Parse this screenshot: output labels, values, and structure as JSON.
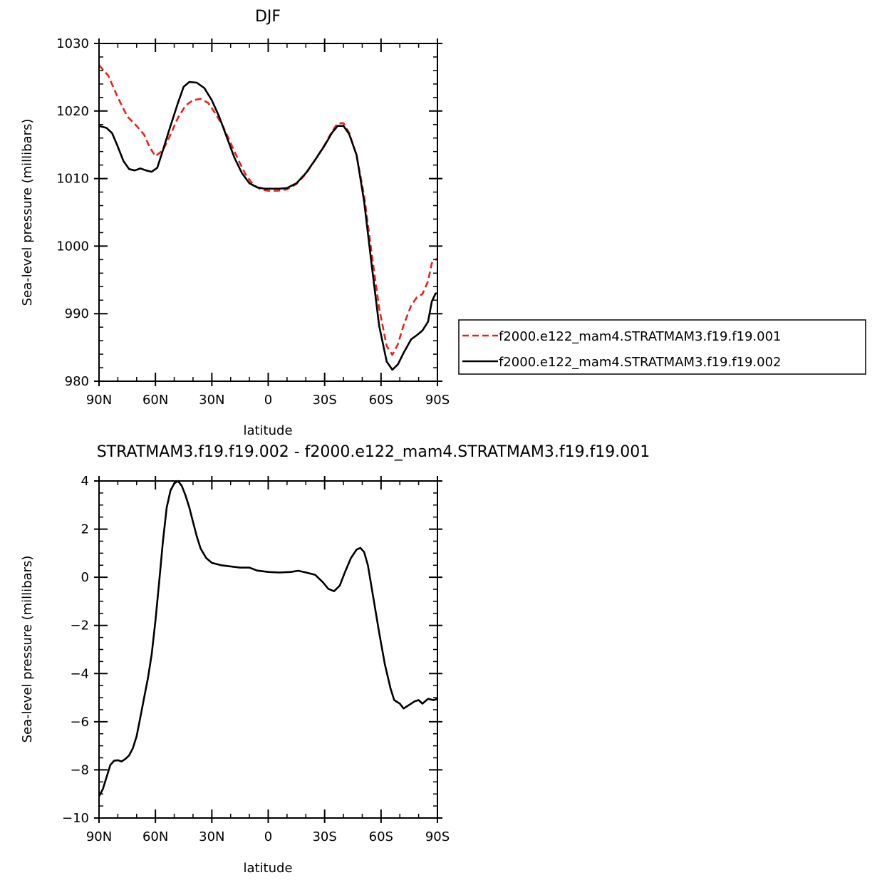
{
  "chart_data": [
    {
      "type": "line",
      "title": "DJF",
      "xlabel": "latitude",
      "ylabel": "Sea-level pressure (millibars)",
      "xlim": [
        90,
        -90
      ],
      "ylim": [
        980,
        1030
      ],
      "x_ticks": [
        {
          "value": 90,
          "label": "90N"
        },
        {
          "value": 60,
          "label": "60N"
        },
        {
          "value": 30,
          "label": "30N"
        },
        {
          "value": 0,
          "label": "0"
        },
        {
          "value": -30,
          "label": "30S"
        },
        {
          "value": -60,
          "label": "60S"
        },
        {
          "value": -90,
          "label": "90S"
        }
      ],
      "y_ticks": [
        {
          "value": 980,
          "label": "980"
        },
        {
          "value": 990,
          "label": "990"
        },
        {
          "value": 1000,
          "label": "1000"
        },
        {
          "value": 1010,
          "label": "1010"
        },
        {
          "value": 1020,
          "label": "1020"
        },
        {
          "value": 1030,
          "label": "1030"
        }
      ],
      "grid": false,
      "legend_position": "right",
      "series": [
        {
          "name": "f2000.e122_mam4.STRATMAM3.f19.f19.001",
          "color": "#e8231c",
          "dash": "dashed",
          "points": [
            [
              90,
              1026.8
            ],
            [
              85,
              1025.2
            ],
            [
              80,
              1022.0
            ],
            [
              75,
              1019.2
            ],
            [
              70,
              1017.8
            ],
            [
              66,
              1016.5
            ],
            [
              63,
              1014.6
            ],
            [
              60,
              1013.3
            ],
            [
              56,
              1014.2
            ],
            [
              52,
              1016.5
            ],
            [
              48,
              1019.0
            ],
            [
              44,
              1020.8
            ],
            [
              40,
              1021.6
            ],
            [
              36,
              1021.8
            ],
            [
              32,
              1021.2
            ],
            [
              28,
              1019.6
            ],
            [
              24,
              1017.7
            ],
            [
              20,
              1015.3
            ],
            [
              16,
              1012.8
            ],
            [
              12,
              1010.6
            ],
            [
              8,
              1009.1
            ],
            [
              4,
              1008.4
            ],
            [
              0,
              1008.2
            ],
            [
              -5,
              1008.2
            ],
            [
              -10,
              1008.4
            ],
            [
              -15,
              1009.2
            ],
            [
              -20,
              1010.7
            ],
            [
              -25,
              1012.8
            ],
            [
              -30,
              1015.0
            ],
            [
              -34,
              1017.0
            ],
            [
              -37,
              1018.2
            ],
            [
              -40,
              1018.2
            ],
            [
              -43,
              1016.8
            ],
            [
              -47,
              1013.4
            ],
            [
              -51,
              1007.5
            ],
            [
              -55,
              999.0
            ],
            [
              -59,
              990.8
            ],
            [
              -63,
              985.2
            ],
            [
              -66,
              983.9
            ],
            [
              -69,
              985.5
            ],
            [
              -72,
              988.3
            ],
            [
              -76,
              991.2
            ],
            [
              -79,
              992.4
            ],
            [
              -82,
              992.9
            ],
            [
              -85,
              994.8
            ],
            [
              -87,
              997.5
            ],
            [
              -90,
              998.2
            ]
          ]
        },
        {
          "name": "f2000.e122_mam4.STRATMAM3.f19.f19.002",
          "color": "#000000",
          "dash": "solid",
          "points": [
            [
              90,
              1017.8
            ],
            [
              86,
              1017.5
            ],
            [
              83,
              1016.7
            ],
            [
              80,
              1014.7
            ],
            [
              77,
              1012.6
            ],
            [
              74,
              1011.4
            ],
            [
              71,
              1011.2
            ],
            [
              68,
              1011.5
            ],
            [
              65,
              1011.2
            ],
            [
              62,
              1011.0
            ],
            [
              59,
              1011.6
            ],
            [
              56,
              1014.2
            ],
            [
              52,
              1017.8
            ],
            [
              48,
              1021.2
            ],
            [
              45,
              1023.6
            ],
            [
              42,
              1024.3
            ],
            [
              38,
              1024.2
            ],
            [
              34,
              1023.4
            ],
            [
              30,
              1021.6
            ],
            [
              26,
              1019.1
            ],
            [
              22,
              1016.1
            ],
            [
              18,
              1013.1
            ],
            [
              14,
              1010.8
            ],
            [
              10,
              1009.3
            ],
            [
              6,
              1008.7
            ],
            [
              2,
              1008.5
            ],
            [
              -2,
              1008.5
            ],
            [
              -6,
              1008.5
            ],
            [
              -10,
              1008.6
            ],
            [
              -15,
              1009.3
            ],
            [
              -20,
              1010.8
            ],
            [
              -25,
              1012.8
            ],
            [
              -30,
              1014.9
            ],
            [
              -34,
              1016.8
            ],
            [
              -37,
              1017.8
            ],
            [
              -40,
              1017.8
            ],
            [
              -43,
              1016.6
            ],
            [
              -47,
              1013.5
            ],
            [
              -51,
              1006.6
            ],
            [
              -55,
              997.3
            ],
            [
              -59,
              988.2
            ],
            [
              -63,
              982.9
            ],
            [
              -66,
              981.7
            ],
            [
              -69,
              982.5
            ],
            [
              -72,
              984.2
            ],
            [
              -76,
              986.2
            ],
            [
              -79,
              986.8
            ],
            [
              -82,
              987.5
            ],
            [
              -85,
              988.8
            ],
            [
              -87,
              991.8
            ],
            [
              -89,
              993.0
            ],
            [
              -90,
              993.0
            ]
          ]
        }
      ]
    },
    {
      "type": "line",
      "title": "STRATMAM3.f19.f19.002 - f2000.e122_mam4.STRATMAM3.f19.f19.001",
      "xlabel": "latitude",
      "ylabel": "Sea-level pressure (millibars)",
      "xlim": [
        90,
        -90
      ],
      "ylim": [
        -10,
        4
      ],
      "x_ticks": [
        {
          "value": 90,
          "label": "90N"
        },
        {
          "value": 60,
          "label": "60N"
        },
        {
          "value": 30,
          "label": "30N"
        },
        {
          "value": 0,
          "label": "0"
        },
        {
          "value": -30,
          "label": "30S"
        },
        {
          "value": -60,
          "label": "60S"
        },
        {
          "value": -90,
          "label": "90S"
        }
      ],
      "y_ticks": [
        {
          "value": -10,
          "label": "-10"
        },
        {
          "value": -8,
          "label": "-8"
        },
        {
          "value": -6,
          "label": "-6"
        },
        {
          "value": -4,
          "label": "-4"
        },
        {
          "value": -2,
          "label": "-2"
        },
        {
          "value": 0,
          "label": "0"
        },
        {
          "value": 2,
          "label": "2"
        },
        {
          "value": 4,
          "label": "4"
        }
      ],
      "grid": false,
      "series": [
        {
          "color": "#000000",
          "dash": "solid",
          "points": [
            [
              90,
              -9.1
            ],
            [
              88,
              -8.8
            ],
            [
              86,
              -8.3
            ],
            [
              84,
              -7.8
            ],
            [
              82,
              -7.62
            ],
            [
              80,
              -7.6
            ],
            [
              78,
              -7.65
            ],
            [
              76,
              -7.55
            ],
            [
              74,
              -7.4
            ],
            [
              72,
              -7.1
            ],
            [
              70,
              -6.6
            ],
            [
              68,
              -5.8
            ],
            [
              66,
              -5.0
            ],
            [
              64,
              -4.2
            ],
            [
              62,
              -3.2
            ],
            [
              60,
              -1.8
            ],
            [
              58,
              -0.2
            ],
            [
              56,
              1.5
            ],
            [
              54,
              2.9
            ],
            [
              52,
              3.6
            ],
            [
              50,
              3.9
            ],
            [
              48,
              4.0
            ],
            [
              46,
              3.8
            ],
            [
              44,
              3.4
            ],
            [
              42,
              2.9
            ],
            [
              40,
              2.3
            ],
            [
              38,
              1.7
            ],
            [
              36,
              1.2
            ],
            [
              33,
              0.8
            ],
            [
              30,
              0.6
            ],
            [
              25,
              0.5
            ],
            [
              20,
              0.45
            ],
            [
              15,
              0.4
            ],
            [
              10,
              0.4
            ],
            [
              6,
              0.28
            ],
            [
              0,
              0.22
            ],
            [
              -6,
              0.2
            ],
            [
              -12,
              0.22
            ],
            [
              -16,
              0.27
            ],
            [
              -20,
              0.2
            ],
            [
              -25,
              0.1
            ],
            [
              -29,
              -0.2
            ],
            [
              -32,
              -0.48
            ],
            [
              -35,
              -0.58
            ],
            [
              -38,
              -0.35
            ],
            [
              -41,
              0.25
            ],
            [
              -44,
              0.8
            ],
            [
              -47,
              1.15
            ],
            [
              -49,
              1.22
            ],
            [
              -51,
              1.05
            ],
            [
              -53,
              0.5
            ],
            [
              -56,
              -0.9
            ],
            [
              -59,
              -2.3
            ],
            [
              -62,
              -3.6
            ],
            [
              -65,
              -4.6
            ],
            [
              -67,
              -5.1
            ],
            [
              -70,
              -5.25
            ],
            [
              -72,
              -5.45
            ],
            [
              -75,
              -5.3
            ],
            [
              -78,
              -5.15
            ],
            [
              -80,
              -5.1
            ],
            [
              -82,
              -5.25
            ],
            [
              -85,
              -5.05
            ],
            [
              -88,
              -5.1
            ],
            [
              -90,
              -5.05
            ]
          ]
        }
      ]
    }
  ]
}
